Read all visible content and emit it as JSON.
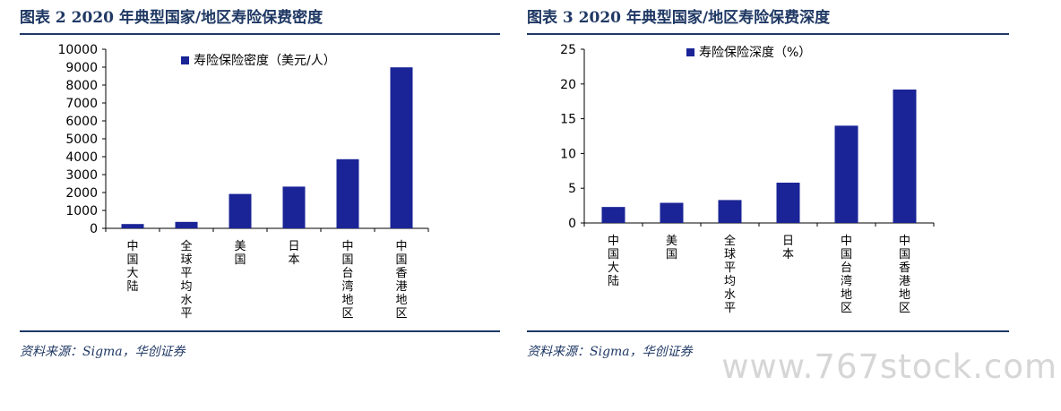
{
  "accent_color": "#1f3864",
  "bar_color": "#1a2496",
  "charts": [
    {
      "title": "图表 2  2020 年典型国家/地区寿险保费密度",
      "source": "资料来源：Sigma，华创证券",
      "chart_data": {
        "type": "bar",
        "categories": [
          "中国大陆",
          "全球平均水平",
          "美国",
          "日本",
          "中国台湾地区",
          "中国香港地区"
        ],
        "series": [
          {
            "name": "寿险保险密度（美元/人）",
            "values": [
              240,
              360,
              1920,
              2330,
              3860,
              8990
            ]
          }
        ],
        "yticks": [
          0,
          1000,
          2000,
          3000,
          4000,
          5000,
          6000,
          7000,
          8000,
          9000,
          10000
        ],
        "ylim": [
          0,
          10000
        ],
        "legend_position": "top-right",
        "grid": false
      }
    },
    {
      "title": "图表 3  2020 年典型国家/地区寿险保费深度",
      "source": "资料来源：Sigma，华创证券",
      "chart_data": {
        "type": "bar",
        "categories": [
          "中国大陆",
          "美国",
          "全球平均水平",
          "日本",
          "中国台湾地区",
          "中国香港地区"
        ],
        "series": [
          {
            "name": "寿险保险深度（%）",
            "values": [
              2.3,
              2.9,
              3.3,
              5.8,
              14.0,
              19.2
            ]
          }
        ],
        "yticks": [
          0,
          5,
          10,
          15,
          20,
          25
        ],
        "ylim": [
          0,
          25
        ],
        "legend_position": "top-center",
        "grid": false
      }
    }
  ],
  "watermark": "www.767stock.com"
}
